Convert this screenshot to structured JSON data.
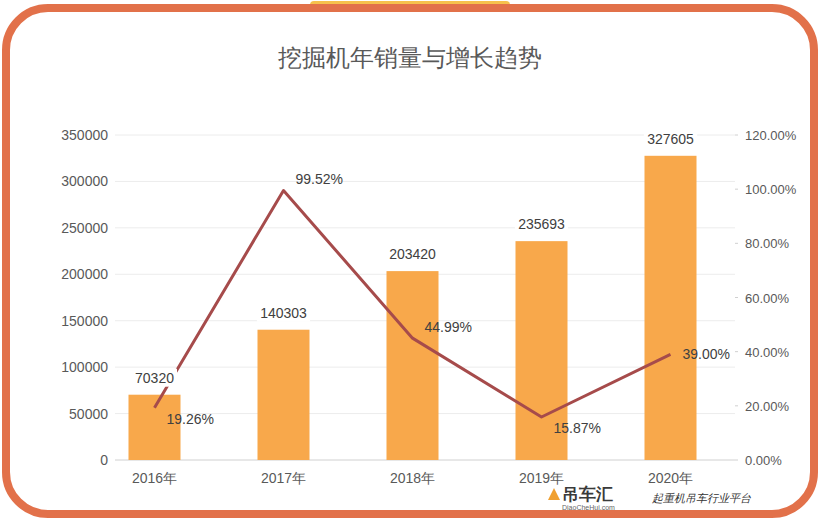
{
  "chart_data": {
    "type": "bar",
    "title": "挖掘机年销量与增长趋势",
    "categories": [
      "2016年",
      "2017年",
      "2018年",
      "2019年",
      "2020年"
    ],
    "series": [
      {
        "type": "bar",
        "color": "#f8a84b",
        "values": [
          70320,
          140303,
          203420,
          235693,
          327605
        ],
        "data_labels": true
      },
      {
        "type": "line",
        "axis": "y2",
        "color": "#a64b4b",
        "values": [
          19.26,
          99.52,
          44.99,
          15.87,
          39.0
        ],
        "value_labels": [
          "19.26%",
          "99.52%",
          "44.99%",
          "15.87%",
          "39.00%"
        ],
        "data_labels": true
      }
    ],
    "ylim": [
      0,
      350000
    ],
    "yticks": [
      0,
      50000,
      100000,
      150000,
      200000,
      250000,
      300000,
      350000
    ],
    "y2lim": [
      0,
      120
    ],
    "y2ticks": [
      {
        "value": 0,
        "label": "0.00%"
      },
      {
        "value": 20,
        "label": "20.00%"
      },
      {
        "value": 40,
        "label": "40.00%"
      },
      {
        "value": 60,
        "label": "60.00%"
      },
      {
        "value": 80,
        "label": "80.00%"
      },
      {
        "value": 100,
        "label": "100.00%"
      },
      {
        "value": 120,
        "label": "120.00%"
      }
    ],
    "grid": true,
    "annotations": [
      "吊车汇",
      "DiaoCheHui.com",
      "起重机吊车行业平台"
    ]
  }
}
